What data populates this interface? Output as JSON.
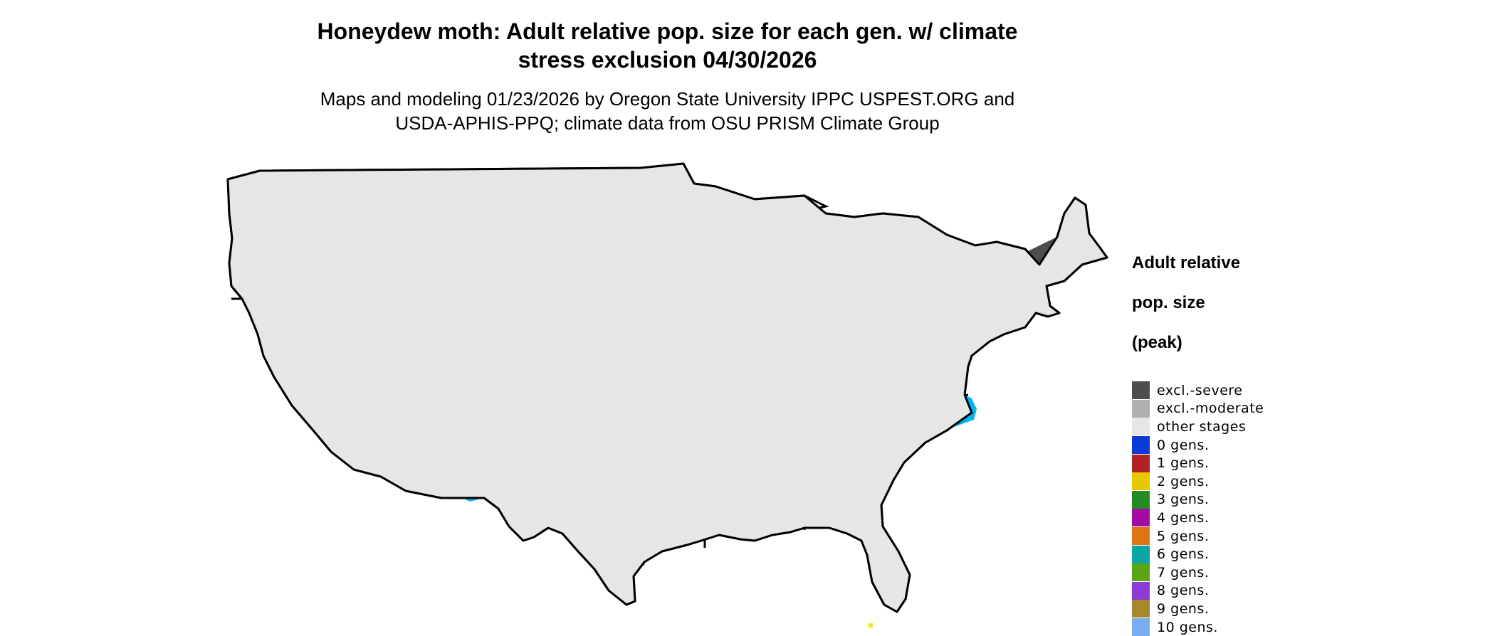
{
  "title": "Honeydew moth: Adult relative pop. size for each gen. w/ climate\nstress exclusion 04/30/2026",
  "title_lines": [
    "Honeydew moth: Adult relative pop. size for each gen. w/ climate",
    "stress exclusion 04/30/2026"
  ],
  "subtitle_lines": [
    "Maps and modeling 01/23/2026 by Oregon State University IPPC USPEST.ORG and",
    "USDA-APHIS-PPQ; climate data from OSU PRISM Climate Group"
  ],
  "legend": {
    "title_lines": [
      "Adult relative",
      "pop. size",
      "(peak)"
    ],
    "items": [
      {
        "label": "excl.-severe",
        "color": "#4d4d4d"
      },
      {
        "label": "excl.-moderate",
        "color": "#b0b0b0"
      },
      {
        "label": "other stages",
        "color": "#e6e6e6"
      },
      {
        "label": "0 gens.",
        "color": "#0a3bd8"
      },
      {
        "label": "1 gens.",
        "color": "#b22222"
      },
      {
        "label": "2 gens.",
        "color": "#e6c700"
      },
      {
        "label": "3 gens.",
        "color": "#228b22"
      },
      {
        "label": "4 gens.",
        "color": "#a40aa4"
      },
      {
        "label": "5 gens.",
        "color": "#e07414"
      },
      {
        "label": "6 gens.",
        "color": "#0aa5a5"
      },
      {
        "label": "7 gens.",
        "color": "#5aa514"
      },
      {
        "label": "8 gens.",
        "color": "#8c3ad8"
      },
      {
        "label": "9 gens.",
        "color": "#a5882a"
      },
      {
        "label": "10 gens.",
        "color": "#7aaef0"
      }
    ]
  },
  "map_colors": {
    "severe": "#4d4d4d",
    "moderate": "#b0b0b0",
    "other": "#e6e6e6",
    "pop_light": "#00b4f0",
    "pop_mid": "#0a78f0",
    "pop_dark": "#0a2ca8",
    "hot": "#e04a14",
    "yellow": "#f0f000",
    "state_line": "#000000"
  }
}
